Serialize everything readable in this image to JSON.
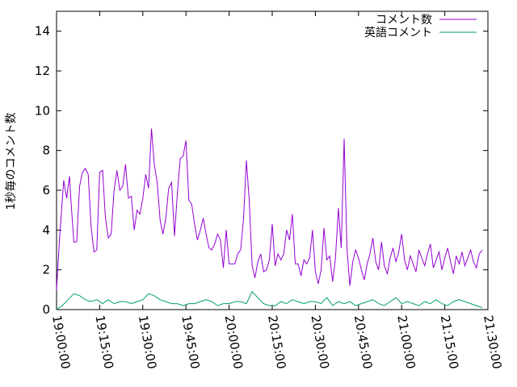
{
  "chart_data": {
    "type": "line",
    "ylabel": "1秒毎のコメント数",
    "ylim": [
      0,
      15
    ],
    "yticks": [
      0,
      2,
      4,
      6,
      8,
      10,
      12,
      14
    ],
    "xlim_minutes": [
      0,
      150
    ],
    "xticks": [
      {
        "label": "19:00:00",
        "minutes": 0
      },
      {
        "label": "19:15:00",
        "minutes": 15
      },
      {
        "label": "19:30:00",
        "minutes": 30
      },
      {
        "label": "19:45:00",
        "minutes": 45
      },
      {
        "label": "20:00:00",
        "minutes": 60
      },
      {
        "label": "20:15:00",
        "minutes": 75
      },
      {
        "label": "20:30:00",
        "minutes": 90
      },
      {
        "label": "20:45:00",
        "minutes": 105
      },
      {
        "label": "21:00:00",
        "minutes": 120
      },
      {
        "label": "21:15:00",
        "minutes": 135
      },
      {
        "label": "21:30:00",
        "minutes": 150
      }
    ],
    "legend_position": "top-right",
    "series": [
      {
        "name": "コメント数",
        "color": "#9400d3",
        "x_minutes": [
          0,
          1,
          2.5,
          3.5,
          4.5,
          5,
          6,
          7,
          8,
          9,
          10,
          11,
          12,
          13,
          14,
          15,
          16,
          17,
          18,
          19,
          20,
          21,
          22,
          23,
          24,
          25,
          26,
          27,
          28,
          29,
          30,
          31,
          32,
          33,
          34,
          35,
          36,
          37,
          38,
          39,
          40,
          41,
          42,
          43,
          44,
          45,
          46,
          47,
          48,
          49,
          50,
          51,
          52,
          53,
          54,
          55,
          56,
          57,
          58,
          59,
          60,
          61,
          62,
          63,
          64,
          65,
          66,
          67,
          68,
          69,
          70,
          71,
          72,
          73,
          74,
          75,
          76,
          77,
          78,
          79,
          80,
          81,
          82,
          83,
          84,
          85,
          86,
          87,
          88,
          89,
          90,
          91,
          92,
          93,
          94,
          95,
          96,
          97,
          98,
          99,
          100,
          101,
          102,
          103,
          104,
          105,
          106,
          107,
          108,
          109,
          110,
          111,
          112,
          113,
          114,
          115,
          116,
          117,
          118,
          119,
          120,
          121,
          122,
          123,
          124,
          125,
          126,
          127,
          128,
          129,
          130,
          131,
          132,
          133,
          134,
          135,
          136,
          137,
          138,
          139,
          140,
          141,
          142,
          143,
          144,
          145,
          146,
          147,
          148
        ],
        "values": [
          1.0,
          3.5,
          6.5,
          5.6,
          6.7,
          5.5,
          3.4,
          3.4,
          6.2,
          6.9,
          7.1,
          6.8,
          4.2,
          2.9,
          3.0,
          6.9,
          7.0,
          4.6,
          3.6,
          3.8,
          6.0,
          7.0,
          6.0,
          6.2,
          7.3,
          5.6,
          5.7,
          4.0,
          5.0,
          4.8,
          5.6,
          6.8,
          6.1,
          9.1,
          7.3,
          6.4,
          4.5,
          3.8,
          4.6,
          6.1,
          6.4,
          3.7,
          5.8,
          7.6,
          7.7,
          8.5,
          5.5,
          5.3,
          4.3,
          3.5,
          4.0,
          4.6,
          3.8,
          3.1,
          3.0,
          3.3,
          3.8,
          3.5,
          2.1,
          4.0,
          2.3,
          2.3,
          2.3,
          2.8,
          3.0,
          4.5,
          7.5,
          5.5,
          2.2,
          1.6,
          2.4,
          2.8,
          1.9,
          2.0,
          2.5,
          4.3,
          2.2,
          2.8,
          2.5,
          2.8,
          4.0,
          3.5,
          4.8,
          2.3,
          2.3,
          1.7,
          2.5,
          2.3,
          2.6,
          4.0,
          1.9,
          1.3,
          2.0,
          4.1,
          2.5,
          2.7,
          1.4,
          2.6,
          5.1,
          3.1,
          8.6,
          3.0,
          1.2,
          2.4,
          3.0,
          2.6,
          2.0,
          1.5,
          2.3,
          2.8,
          3.6,
          2.4,
          2.0,
          3.4,
          2.2,
          1.8,
          2.6,
          3.1,
          2.4,
          2.9,
          3.8,
          2.5,
          2.0,
          2.7,
          2.3,
          1.9,
          3.0,
          2.6,
          2.2,
          2.8,
          3.3,
          2.1,
          2.5,
          2.9,
          2.0,
          2.6,
          3.1,
          2.4,
          1.8,
          2.7,
          2.3,
          2.9,
          2.2,
          2.6,
          3.0,
          2.4,
          2.1,
          2.8,
          3.0
        ]
      },
      {
        "name": "英語コメント",
        "color": "#009e73",
        "x_minutes": [
          0,
          2,
          4,
          6,
          8,
          10,
          12,
          14,
          16,
          18,
          20,
          22,
          24,
          26,
          28,
          30,
          32,
          34,
          36,
          38,
          40,
          42,
          44,
          46,
          48,
          50,
          52,
          54,
          56,
          58,
          60,
          62,
          64,
          66,
          68,
          70,
          72,
          74,
          76,
          78,
          80,
          82,
          84,
          86,
          88,
          90,
          92,
          94,
          96,
          98,
          100,
          102,
          104,
          106,
          108,
          110,
          112,
          114,
          116,
          118,
          120,
          122,
          124,
          126,
          128,
          130,
          132,
          134,
          136,
          138,
          140,
          142,
          144,
          146,
          148
        ],
        "values": [
          0.0,
          0.2,
          0.5,
          0.8,
          0.7,
          0.5,
          0.4,
          0.5,
          0.3,
          0.5,
          0.3,
          0.4,
          0.4,
          0.3,
          0.4,
          0.5,
          0.8,
          0.7,
          0.5,
          0.4,
          0.3,
          0.3,
          0.2,
          0.3,
          0.3,
          0.4,
          0.5,
          0.4,
          0.2,
          0.3,
          0.3,
          0.4,
          0.4,
          0.3,
          0.9,
          0.6,
          0.3,
          0.2,
          0.2,
          0.4,
          0.3,
          0.5,
          0.4,
          0.3,
          0.4,
          0.4,
          0.3,
          0.6,
          0.2,
          0.4,
          0.3,
          0.4,
          0.2,
          0.3,
          0.4,
          0.5,
          0.3,
          0.2,
          0.4,
          0.6,
          0.3,
          0.4,
          0.3,
          0.2,
          0.4,
          0.3,
          0.5,
          0.3,
          0.2,
          0.4,
          0.5,
          0.4,
          0.3,
          0.2,
          0.1
        ]
      }
    ]
  }
}
